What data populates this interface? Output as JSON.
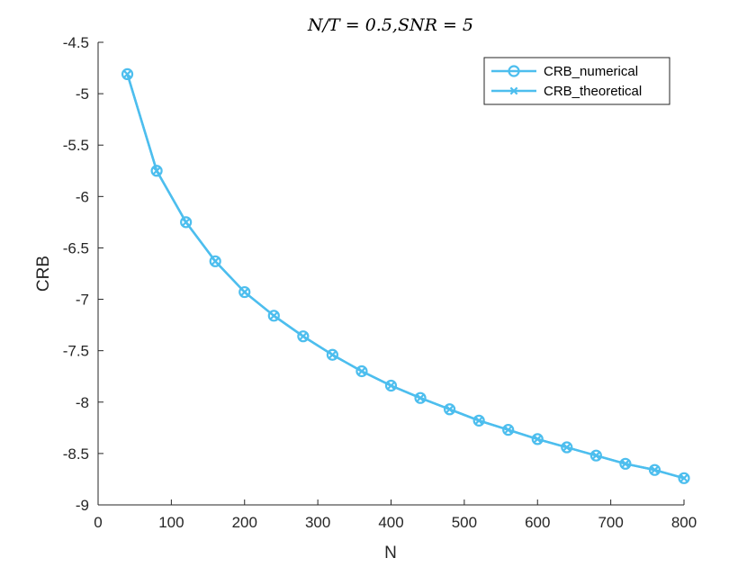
{
  "chart_data": {
    "type": "line",
    "title": "N/T = 0.5,SNR = 5",
    "xlabel": "N",
    "ylabel": "CRB",
    "xlim": [
      0,
      800
    ],
    "ylim": [
      -9,
      -4.5
    ],
    "xticks": [
      0,
      100,
      200,
      300,
      400,
      500,
      600,
      700,
      800
    ],
    "xtick_labels": [
      "0",
      "100",
      "200",
      "300",
      "400",
      "500",
      "600",
      "700",
      "800"
    ],
    "yticks": [
      -4.5,
      -5,
      -5.5,
      -6,
      -6.5,
      -7,
      -7.5,
      -8,
      -8.5,
      -9
    ],
    "ytick_labels": [
      "-4.5",
      "-5",
      "-5.5",
      "-6",
      "-6.5",
      "-7",
      "-7.5",
      "-8",
      "-8.5",
      "-9"
    ],
    "grid": false,
    "legend_position": "top-right",
    "x": [
      40,
      80,
      120,
      160,
      200,
      240,
      280,
      320,
      360,
      400,
      440,
      480,
      520,
      560,
      600,
      640,
      680,
      720,
      760,
      800
    ],
    "series": [
      {
        "name": "CRB_numerical",
        "marker": "circle",
        "color": "#4dbeee",
        "values": [
          -4.81,
          -5.75,
          -6.25,
          -6.63,
          -6.93,
          -7.16,
          -7.36,
          -7.54,
          -7.7,
          -7.84,
          -7.96,
          -8.07,
          -8.18,
          -8.27,
          -8.36,
          -8.44,
          -8.52,
          -8.6,
          -8.66,
          -8.74
        ]
      },
      {
        "name": "CRB_theoretical",
        "marker": "x",
        "color": "#4dbeee",
        "values": [
          -4.81,
          -5.75,
          -6.25,
          -6.63,
          -6.93,
          -7.16,
          -7.36,
          -7.54,
          -7.7,
          -7.84,
          -7.96,
          -8.07,
          -8.18,
          -8.27,
          -8.36,
          -8.44,
          -8.52,
          -8.6,
          -8.66,
          -8.74
        ]
      }
    ]
  }
}
